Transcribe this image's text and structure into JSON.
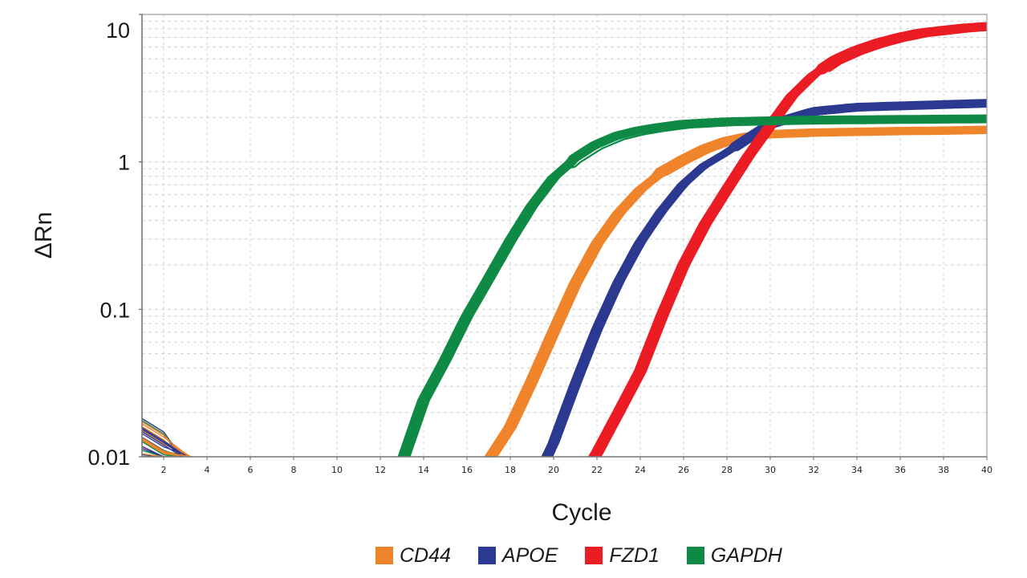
{
  "chart_data": {
    "type": "line",
    "title": "",
    "xlabel": "Cycle",
    "ylabel": "ΔRn",
    "xlim": [
      1,
      40
    ],
    "ylim": [
      0.01,
      10
    ],
    "yscale": "log",
    "grid": true,
    "legend_position": "bottom",
    "x_ticks": [
      2,
      4,
      6,
      8,
      10,
      12,
      14,
      16,
      18,
      20,
      22,
      24,
      26,
      28,
      30,
      32,
      34,
      36,
      38,
      40
    ],
    "x_tick_labels": [
      "2",
      "4",
      "6",
      "8",
      "10",
      "12",
      "14",
      "16",
      "18",
      "20",
      "22",
      "24",
      "26",
      "28",
      "30",
      "32",
      "34",
      "36",
      "38",
      "40"
    ],
    "y_ticks": [
      0.01,
      0.1,
      1,
      10
    ],
    "y_tick_labels": [
      "0.01",
      "0.1",
      "1",
      "10"
    ],
    "series": [
      {
        "name": "CD44",
        "color": "#f0842a",
        "x": [
          16,
          17,
          18,
          19,
          20,
          21,
          22,
          23,
          24,
          25,
          26,
          27,
          28,
          29,
          30,
          32,
          34,
          36,
          38,
          40
        ],
        "values": [
          0.006,
          0.0095,
          0.016,
          0.033,
          0.071,
          0.15,
          0.28,
          0.45,
          0.65,
          0.85,
          1.03,
          1.22,
          1.38,
          1.48,
          1.54,
          1.58,
          1.6,
          1.62,
          1.63,
          1.65
        ]
      },
      {
        "name": "APOE",
        "color": "#2b3990",
        "x": [
          19,
          20,
          21,
          22,
          23,
          24,
          25,
          26,
          27,
          28,
          29,
          30,
          32,
          34,
          36,
          38,
          40
        ],
        "values": [
          0.006,
          0.012,
          0.03,
          0.071,
          0.15,
          0.28,
          0.46,
          0.7,
          0.95,
          1.16,
          1.45,
          1.8,
          2.2,
          2.35,
          2.4,
          2.45,
          2.5
        ]
      },
      {
        "name": "FZD1",
        "color": "#ec1c24",
        "x": [
          21,
          22,
          23,
          24,
          25,
          26,
          27,
          28,
          29,
          30,
          31,
          32,
          33,
          34,
          35,
          36,
          37,
          38,
          39,
          40
        ],
        "values": [
          0.006,
          0.0106,
          0.02,
          0.038,
          0.09,
          0.2,
          0.38,
          0.65,
          1.1,
          1.76,
          2.8,
          3.9,
          4.9,
          5.7,
          6.4,
          7.0,
          7.5,
          7.8,
          8.1,
          8.3
        ]
      },
      {
        "name": "GAPDH",
        "color": "#0f8a45",
        "x": [
          13,
          14,
          15,
          16,
          17,
          18,
          19,
          20,
          21,
          22,
          23,
          24,
          25,
          26,
          28,
          30,
          32,
          34,
          36,
          38,
          40
        ],
        "values": [
          0.009,
          0.024,
          0.045,
          0.089,
          0.16,
          0.29,
          0.5,
          0.78,
          1.05,
          1.3,
          1.5,
          1.63,
          1.72,
          1.8,
          1.87,
          1.9,
          1.92,
          1.93,
          1.94,
          1.95,
          1.96
        ]
      }
    ],
    "baseline_noise": {
      "note": "replicate noise traces near cycles 1-3 at the 0.01 floor",
      "x": [
        1,
        2,
        3
      ],
      "values": [
        0.016,
        0.013,
        0.01
      ]
    }
  },
  "legend": [
    {
      "label": "CD44",
      "color": "#f0842a"
    },
    {
      "label": "APOE",
      "color": "#2b3990"
    },
    {
      "label": "FZD1",
      "color": "#ec1c24"
    },
    {
      "label": "GAPDH",
      "color": "#0f8a45"
    }
  ]
}
